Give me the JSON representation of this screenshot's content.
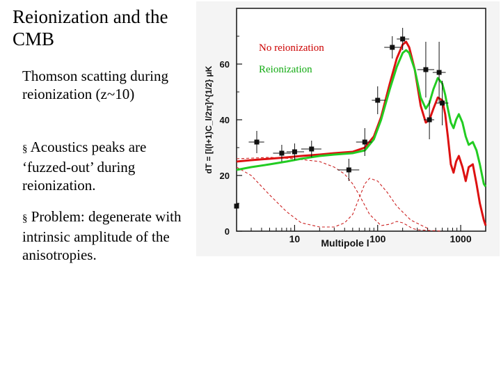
{
  "slide": {
    "title": "Reionization and the CMB",
    "paragraphs": [
      {
        "bullet": "",
        "text": "Thomson scatting during reionization (z~10)"
      },
      {
        "bullet": "§",
        "text": "Acoustics peaks are ‘fuzzed-out’ during reionization."
      },
      {
        "bullet": "§",
        "text": "Problem: degenerate with intrinsic amplitude of the anisotropies."
      }
    ]
  },
  "chart_data": {
    "type": "line",
    "xlabel": "Multipole l",
    "ylabel": "dT = [l(l+1)C_l/2π]^{1/2} μK",
    "xscale": "log",
    "xlim": [
      2,
      2000
    ],
    "ylim": [
      0,
      80
    ],
    "x_ticks": [
      10,
      100,
      1000
    ],
    "y_ticks": [
      0,
      20,
      40,
      60
    ],
    "legend": {
      "placement": "top-right",
      "entries": [
        {
          "label": "No reionization",
          "color": "#cc0000"
        },
        {
          "label": "Reionization",
          "color": "#11aa11"
        }
      ]
    },
    "series": [
      {
        "name": "No reionization",
        "color": "#dd1111",
        "style": "solid",
        "x": [
          2,
          3,
          5,
          8,
          12,
          20,
          30,
          50,
          70,
          90,
          110,
          140,
          170,
          200,
          220,
          240,
          280,
          330,
          380,
          420,
          470,
          530,
          600,
          650,
          700,
          760,
          820,
          880,
          950,
          1050,
          1150,
          1250,
          1400,
          1550,
          1700,
          1900,
          2000
        ],
        "y": [
          25,
          25.5,
          26,
          26.5,
          27,
          27.5,
          28,
          28.5,
          30,
          34,
          41,
          53,
          62,
          67,
          68,
          66,
          58,
          45,
          39,
          40,
          44,
          48,
          47,
          42,
          34,
          24,
          21,
          25,
          27,
          23,
          18,
          23,
          24,
          17,
          10,
          4,
          2
        ]
      },
      {
        "name": "Reionization",
        "color": "#22cc22",
        "style": "solid",
        "x": [
          2,
          3,
          5,
          8,
          12,
          20,
          30,
          50,
          70,
          90,
          110,
          140,
          170,
          200,
          220,
          240,
          280,
          330,
          380,
          420,
          470,
          530,
          600,
          650,
          700,
          760,
          820,
          880,
          950,
          1050,
          1150,
          1250,
          1400,
          1550,
          1700,
          1900,
          2000
        ],
        "y": [
          22,
          23,
          24,
          25,
          26,
          27,
          27.5,
          28,
          29,
          33,
          40,
          51,
          59,
          64,
          65,
          64,
          58,
          48,
          44,
          46,
          51,
          55,
          53,
          49,
          44,
          39,
          37,
          40,
          42,
          39,
          34,
          31,
          32,
          29,
          24,
          17,
          16
        ]
      },
      {
        "name": "",
        "color": "#cc2222",
        "style": "dashed",
        "x": [
          2,
          3,
          5,
          8,
          12,
          20,
          30,
          40,
          50,
          60,
          70,
          80,
          100,
          130,
          170,
          250,
          400
        ],
        "y": [
          23,
          20,
          13,
          7,
          3,
          1.5,
          1.5,
          3,
          6,
          12,
          17,
          19,
          18,
          14,
          9,
          4,
          1
        ]
      },
      {
        "name": "",
        "color": "#cc2222",
        "style": "dashed",
        "x": [
          2,
          5,
          10,
          20,
          30,
          40,
          50,
          60,
          80,
          110,
          140,
          170,
          200,
          230,
          260,
          300,
          400,
          600
        ],
        "y": [
          26,
          26.5,
          26,
          25,
          23,
          20.5,
          17,
          13,
          6,
          2,
          2.5,
          3.5,
          3,
          2,
          1,
          0.5,
          0.3,
          0
        ]
      }
    ],
    "points": {
      "x": [
        2,
        3.5,
        7,
        10,
        16,
        45,
        70,
        100,
        150,
        200,
        380,
        420,
        550,
        600
      ],
      "y": [
        9,
        32,
        28,
        28.5,
        29.5,
        22,
        32,
        47,
        66,
        69,
        58,
        40,
        57,
        46
      ],
      "xerr_lo": [
        0,
        0.7,
        1.5,
        2,
        4,
        12,
        15,
        15,
        30,
        30,
        80,
        60,
        90,
        90
      ],
      "xerr_hi": [
        0,
        0.8,
        2,
        3,
        5,
        15,
        15,
        25,
        40,
        40,
        100,
        60,
        110,
        110
      ],
      "yerr": [
        9,
        4,
        3,
        3,
        3,
        4,
        5,
        5,
        4,
        4,
        10,
        7,
        11,
        8
      ]
    }
  }
}
